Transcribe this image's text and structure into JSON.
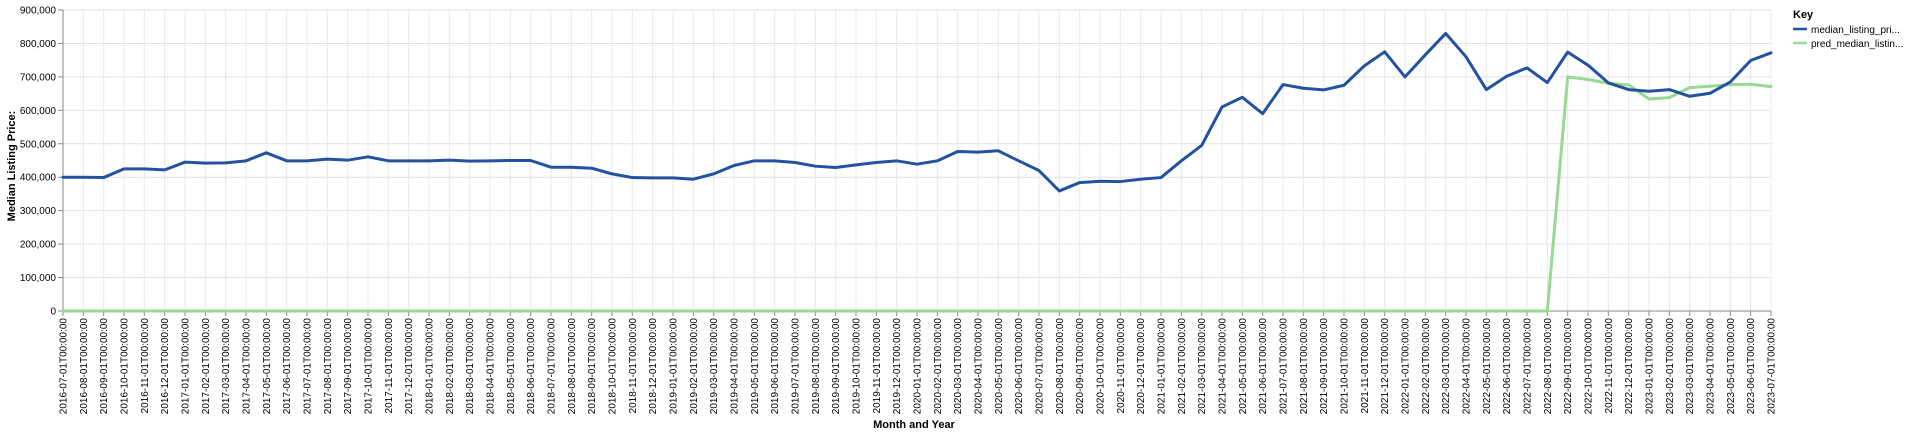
{
  "chart_data": {
    "type": "line",
    "title": "",
    "xlabel": "Month and Year",
    "ylabel": "Median Listing Price:",
    "ylim": [
      0,
      900000
    ],
    "yticks": [
      0,
      100000,
      200000,
      300000,
      400000,
      500000,
      600000,
      700000,
      800000,
      900000
    ],
    "ytick_labels": [
      "0",
      "100,000",
      "200,000",
      "300,000",
      "400,000",
      "500,000",
      "600,000",
      "700,000",
      "800,000",
      "900,000"
    ],
    "grid": true,
    "legend": {
      "title": "Key",
      "position": "right"
    },
    "categories": [
      "2016-07-01T00:00:00",
      "2016-08-01T00:00:00",
      "2016-09-01T00:00:00",
      "2016-10-01T00:00:00",
      "2016-11-01T00:00:00",
      "2016-12-01T00:00:00",
      "2017-01-01T00:00:00",
      "2017-02-01T00:00:00",
      "2017-03-01T00:00:00",
      "2017-04-01T00:00:00",
      "2017-05-01T00:00:00",
      "2017-06-01T00:00:00",
      "2017-07-01T00:00:00",
      "2017-08-01T00:00:00",
      "2017-09-01T00:00:00",
      "2017-10-01T00:00:00",
      "2017-11-01T00:00:00",
      "2017-12-01T00:00:00",
      "2018-01-01T00:00:00",
      "2018-02-01T00:00:00",
      "2018-03-01T00:00:00",
      "2018-04-01T00:00:00",
      "2018-05-01T00:00:00",
      "2018-06-01T00:00:00",
      "2018-07-01T00:00:00",
      "2018-08-01T00:00:00",
      "2018-09-01T00:00:00",
      "2018-10-01T00:00:00",
      "2018-11-01T00:00:00",
      "2018-12-01T00:00:00",
      "2019-01-01T00:00:00",
      "2019-02-01T00:00:00",
      "2019-03-01T00:00:00",
      "2019-04-01T00:00:00",
      "2019-05-01T00:00:00",
      "2019-06-01T00:00:00",
      "2019-07-01T00:00:00",
      "2019-08-01T00:00:00",
      "2019-09-01T00:00:00",
      "2019-10-01T00:00:00",
      "2019-11-01T00:00:00",
      "2019-12-01T00:00:00",
      "2020-01-01T00:00:00",
      "2020-02-01T00:00:00",
      "2020-03-01T00:00:00",
      "2020-04-01T00:00:00",
      "2020-05-01T00:00:00",
      "2020-06-01T00:00:00",
      "2020-07-01T00:00:00",
      "2020-08-01T00:00:00",
      "2020-09-01T00:00:00",
      "2020-10-01T00:00:00",
      "2020-11-01T00:00:00",
      "2020-12-01T00:00:00",
      "2021-01-01T00:00:00",
      "2021-02-01T00:00:00",
      "2021-03-01T00:00:00",
      "2021-04-01T00:00:00",
      "2021-05-01T00:00:00",
      "2021-06-01T00:00:00",
      "2021-07-01T00:00:00",
      "2021-08-01T00:00:00",
      "2021-09-01T00:00:00",
      "2021-10-01T00:00:00",
      "2021-11-01T00:00:00",
      "2021-12-01T00:00:00",
      "2022-01-01T00:00:00",
      "2022-02-01T00:00:00",
      "2022-03-01T00:00:00",
      "2022-04-01T00:00:00",
      "2022-05-01T00:00:00",
      "2022-06-01T00:00:00",
      "2022-07-01T00:00:00",
      "2022-08-01T00:00:00",
      "2022-09-01T00:00:00",
      "2022-10-01T00:00:00",
      "2022-11-01T00:00:00",
      "2022-12-01T00:00:00",
      "2023-01-01T00:00:00",
      "2023-02-01T00:00:00",
      "2023-03-01T00:00:00",
      "2023-04-01T00:00:00",
      "2023-05-01T00:00:00",
      "2023-06-01T00:00:00",
      "2023-07-01T00:00:00"
    ],
    "series": [
      {
        "name": "median_listing_pri...",
        "color": "#2352a0",
        "values": [
          400000,
          400000,
          399000,
          425000,
          425000,
          422000,
          445000,
          442000,
          443000,
          449000,
          473000,
          449000,
          449000,
          454000,
          451000,
          461000,
          449000,
          449000,
          449000,
          451000,
          448000,
          449000,
          450000,
          450000,
          430000,
          430000,
          427000,
          410000,
          399000,
          398000,
          398000,
          394000,
          410000,
          435000,
          449000,
          449000,
          444000,
          433000,
          429000,
          437000,
          444000,
          449000,
          439000,
          449000,
          477000,
          475000,
          479000,
          449000,
          420000,
          359000,
          384000,
          388000,
          387000,
          394000,
          399000,
          449000,
          495000,
          610000,
          639000,
          590000,
          677000,
          666000,
          661000,
          675000,
          733000,
          775000,
          700000,
          766000,
          830000,
          760000,
          662000,
          702000,
          727000,
          683000,
          774000,
          735000,
          682000,
          662000,
          657000,
          662000,
          642000,
          651000,
          685000,
          749000,
          772000
        ]
      },
      {
        "name": "pred_median_listin...",
        "color": "#98d993",
        "values": [
          0,
          0,
          0,
          0,
          0,
          0,
          0,
          0,
          0,
          0,
          0,
          0,
          0,
          0,
          0,
          0,
          0,
          0,
          0,
          0,
          0,
          0,
          0,
          0,
          0,
          0,
          0,
          0,
          0,
          0,
          0,
          0,
          0,
          0,
          0,
          0,
          0,
          0,
          0,
          0,
          0,
          0,
          0,
          0,
          0,
          0,
          0,
          0,
          0,
          0,
          0,
          0,
          0,
          0,
          0,
          0,
          0,
          0,
          0,
          0,
          0,
          0,
          0,
          0,
          0,
          0,
          0,
          0,
          0,
          0,
          0,
          0,
          0,
          0,
          700000,
          692000,
          681000,
          676000,
          634000,
          638000,
          668000,
          672000,
          677000,
          678000,
          671000
        ]
      }
    ]
  }
}
